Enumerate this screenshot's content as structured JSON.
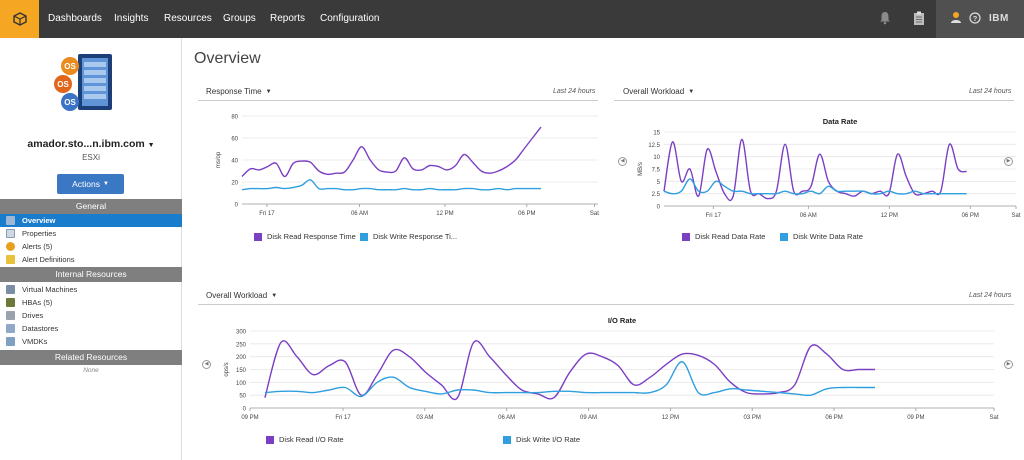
{
  "nav": {
    "items": [
      "Dashboards",
      "Insights",
      "Resources",
      "Groups",
      "Reports",
      "Configuration"
    ],
    "brand": "IBM"
  },
  "sidebar": {
    "device_name": "amador.sto...n.ibm.com",
    "device_type": "ESXi",
    "actions_label": "Actions",
    "os_badges": [
      "OS",
      "OS",
      "OS"
    ],
    "sections": {
      "general": "General",
      "internal": "Internal Resources",
      "related": "Related Resources"
    },
    "general_items": [
      "Overview",
      "Properties",
      "Alerts (5)",
      "Alert Definitions"
    ],
    "internal_items": [
      "Virtual Machines",
      "HBAs (5)",
      "Drives",
      "Datastores",
      "VMDKs"
    ],
    "related_none": "None"
  },
  "main": {
    "title": "Overview",
    "colors": {
      "read": "#7b3fc4",
      "write": "#2f9fe0"
    }
  },
  "panels": {
    "response": {
      "title": "Response Time",
      "range": "Last 24 hours"
    },
    "workload_top": {
      "title": "Overall Workload",
      "range": "Last 24 hours"
    },
    "workload_bottom": {
      "title": "Overall Workload",
      "range": "Last 24 hours"
    }
  },
  "chart_data": [
    {
      "type": "line",
      "title": "",
      "xlabel": "",
      "ylabel": "ms/op",
      "ylim": [
        0,
        80
      ],
      "yticks": [
        "0",
        "20",
        "40",
        "60",
        "80"
      ],
      "xticks": [
        "Fri 17",
        "06 AM",
        "12 PM",
        "06 PM",
        "Sat"
      ],
      "x": [
        0,
        0.5,
        1,
        1.5,
        2,
        2.5,
        3,
        3.5,
        4,
        4.5,
        5,
        5.5,
        6,
        6.5,
        7,
        7.5,
        8,
        8.5,
        9,
        9.5,
        10,
        10.5,
        11,
        11.5,
        12,
        12.5,
        13,
        13.5,
        14,
        14.5,
        15,
        15.5,
        16,
        16.5,
        17,
        17.5
      ],
      "series": [
        {
          "name": "Disk Read Response Time",
          "values": [
            25,
            32,
            31,
            34,
            37,
            25,
            37,
            39,
            38,
            30,
            27,
            28,
            29,
            40,
            52,
            40,
            31,
            29,
            30,
            42,
            32,
            31,
            35,
            34,
            31,
            35,
            45,
            38,
            30,
            28,
            30,
            34,
            40,
            50,
            60,
            70
          ]
        },
        {
          "name": "Disk Write Response Ti...",
          "values": [
            13,
            14,
            14,
            14,
            15,
            14,
            15,
            17,
            22,
            14,
            14,
            14,
            13,
            13,
            14,
            14,
            13,
            13,
            13,
            14,
            13,
            13,
            14,
            13,
            13,
            13,
            14,
            14,
            13,
            13,
            14,
            13,
            14,
            14,
            14,
            14
          ]
        }
      ]
    },
    {
      "type": "line",
      "title": "Data Rate",
      "xlabel": "",
      "ylabel": "MB/s",
      "ylim": [
        0,
        15
      ],
      "yticks": [
        "0",
        "2.5",
        "5",
        "7.5",
        "10",
        "12.5",
        "15"
      ],
      "xticks": [
        "Fri 17",
        "06 AM",
        "12 PM",
        "06 PM",
        "Sat"
      ],
      "x": [
        0,
        0.5,
        1,
        1.5,
        2,
        2.5,
        3,
        3.5,
        4,
        4.5,
        5,
        5.5,
        6,
        6.5,
        7,
        7.5,
        8,
        8.5,
        9,
        9.5,
        10,
        10.5,
        11,
        11.5,
        12,
        12.5,
        13,
        13.5,
        14,
        14.5,
        15,
        15.5,
        16,
        16.5,
        17,
        17.5
      ],
      "series": [
        {
          "name": "Disk Read Data Rate",
          "values": [
            3,
            13,
            5,
            7.5,
            2,
            11.5,
            7,
            2.5,
            2,
            13.5,
            3,
            2.5,
            1.5,
            3,
            12.5,
            3,
            3,
            4,
            10.5,
            5,
            3,
            2.5,
            2,
            3,
            2.5,
            3,
            2.5,
            10.5,
            6,
            2.5,
            2.5,
            3,
            3,
            12.5,
            7.5,
            7
          ]
        },
        {
          "name": "Disk Write Data Rate",
          "values": [
            3,
            2.5,
            3,
            5.5,
            3,
            3,
            5,
            4,
            3,
            3,
            2.5,
            2.5,
            2.5,
            2.5,
            3,
            2.5,
            2.5,
            3,
            2.5,
            4,
            3,
            3,
            3,
            3,
            2.5,
            2.5,
            3,
            2.5,
            2.5,
            3,
            2.5,
            2.5,
            2.5,
            2.5,
            2.5,
            2.5
          ]
        }
      ]
    },
    {
      "type": "line",
      "title": "I/O Rate",
      "xlabel": "",
      "ylabel": "ops/s",
      "ylim": [
        0,
        300
      ],
      "yticks": [
        "0",
        "50",
        "100",
        "150",
        "200",
        "250",
        "300"
      ],
      "xticks": [
        "09 PM",
        "Fri 17",
        "03 AM",
        "06 AM",
        "09 AM",
        "12 PM",
        "03 PM",
        "06 PM",
        "09 PM",
        "Sat"
      ],
      "x": [
        0,
        0.5,
        1,
        1.5,
        2,
        2.5,
        3,
        3.5,
        4,
        4.5,
        5,
        5.5,
        6,
        6.5,
        7,
        7.5,
        8,
        8.5,
        9,
        9.5,
        10,
        10.5,
        11,
        11.5,
        12,
        12.5,
        13,
        13.5,
        14,
        14.5,
        15,
        15.5,
        16,
        16.5,
        17,
        17.5,
        18,
        18.5,
        19
      ],
      "series": [
        {
          "name": "Disk Read I/O Rate",
          "values": [
            40,
            255,
            200,
            130,
            165,
            180,
            50,
            130,
            225,
            200,
            140,
            90,
            40,
            255,
            200,
            130,
            70,
            55,
            40,
            140,
            210,
            200,
            165,
            90,
            120,
            170,
            210,
            205,
            170,
            100,
            60,
            55,
            60,
            90,
            240,
            210,
            150,
            150,
            150
          ]
        },
        {
          "name": "Disk Write I/O Rate",
          "values": [
            60,
            65,
            65,
            60,
            70,
            80,
            45,
            100,
            120,
            80,
            65,
            55,
            70,
            70,
            60,
            60,
            60,
            60,
            65,
            65,
            60,
            60,
            60,
            60,
            60,
            90,
            180,
            60,
            60,
            75,
            70,
            65,
            60,
            55,
            50,
            75,
            80,
            80,
            80
          ]
        }
      ]
    }
  ]
}
